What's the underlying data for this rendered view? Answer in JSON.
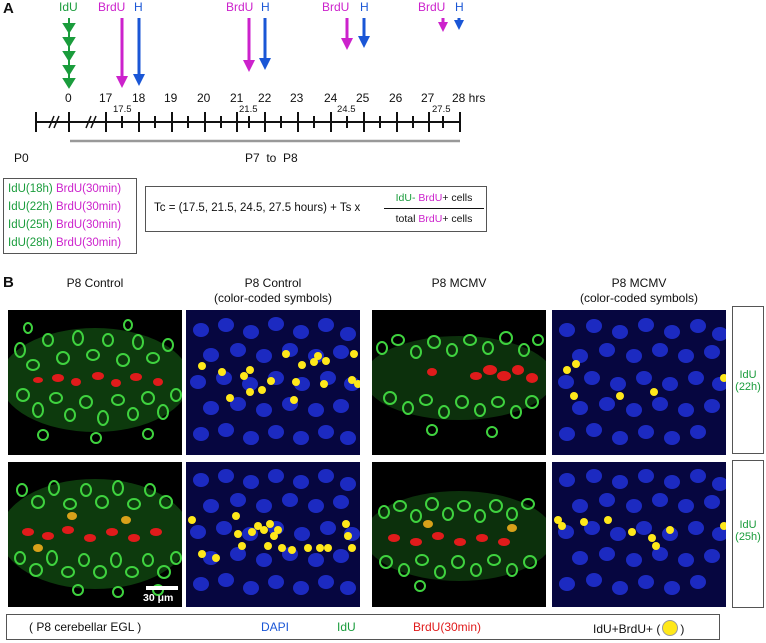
{
  "panel_a": {
    "letter": "A",
    "label_idu": "IdU",
    "label_brdu": "BrdU",
    "label_h": "H",
    "ticks_major": [
      "0",
      "17",
      "18",
      "19",
      "20",
      "21",
      "22",
      "23",
      "24",
      "25",
      "26",
      "27",
      "28 hrs"
    ],
    "ticks_half": [
      "17.5",
      "21.5",
      "24.5",
      "27.5"
    ],
    "p0": "P0",
    "p7p8": "P7  to  P8",
    "legend_rows": [
      {
        "idu": "IdU(18h)",
        "brdu": "BrdU(30min)"
      },
      {
        "idu": "IdU(22h)",
        "brdu": "BrdU(30min)"
      },
      {
        "idu": "IdU(25h)",
        "brdu": "BrdU(30min)"
      },
      {
        "idu": "IdU(28h)",
        "brdu": "BrdU(30min)"
      }
    ],
    "formula": {
      "left": "Tc = (17.5, 21.5, 24.5, 27.5 hours) + Ts x",
      "num_idu": "IdU-",
      "num_brdu": "BrdU",
      "num_tail": "+ cells",
      "den_head": "total",
      "den_brdu": "BrdU",
      "den_tail": "+ cells"
    }
  },
  "panel_b": {
    "letter": "B",
    "col1": "P8 Control",
    "col2_line1": "P8 Control",
    "col2_line2": "(color-coded symbols)",
    "col3": "P8 MCMV",
    "col4_line1": "P8 MCMV",
    "col4_line2": "(color-coded symbols)",
    "row1_label_a": "IdU",
    "row1_label_b": "(22h)",
    "row2_label_a": "IdU",
    "row2_label_b": "(25h)",
    "scale": "30 μm",
    "footer": {
      "tissue": "( P8 cerebellar EGL )",
      "dapi": "DAPI",
      "idu": "IdU",
      "brdu": "BrdU(30min)",
      "double": "IdU+BrdU+ (",
      "double_close": ")"
    }
  },
  "colors": {
    "idu": "#1a9c3c",
    "brdu": "#cc22cc",
    "h": "#1a56d6",
    "dapi": "#1a56d6",
    "brdu_stain": "#e01b1b",
    "marker": "#ffe81a"
  }
}
